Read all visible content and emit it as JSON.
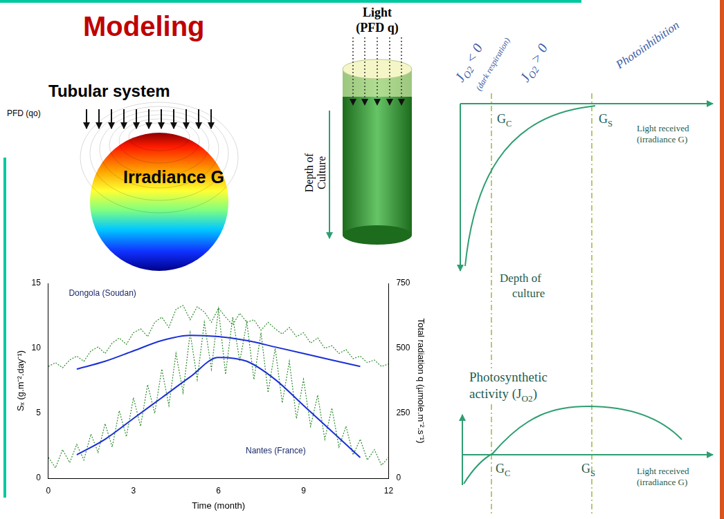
{
  "title": "Modeling",
  "tubular_system": {
    "title": "Tubular system",
    "pfd_label": "PFD (qo)",
    "field_label": "Irradiance G"
  },
  "culture_column": {
    "light_label": "Light",
    "pfd_label": "(PFD q)",
    "depth_label": "Depth of Culture"
  },
  "light_response": {
    "zones": {
      "dark": {
        "label": [
          {
            "t": "J"
          },
          {
            "sub": "O2"
          },
          {
            "t": " < 0"
          }
        ],
        "note": "(dark respiration)"
      },
      "positive": {
        "label": [
          {
            "t": "J"
          },
          {
            "sub": "O2"
          },
          {
            "t": " > 0"
          }
        ]
      },
      "inhibition": {
        "label": "Photoinhibition"
      }
    },
    "thresholds": [
      [
        {
          "t": "G"
        },
        {
          "sub": "C"
        }
      ],
      [
        {
          "t": "G"
        },
        {
          "sub": "S"
        }
      ]
    ],
    "top_panel": {
      "x_label": "Light received (irradiance G)",
      "y_label": "Depth of culture"
    },
    "bottom_panel": {
      "x_label": "Light received (irradiance G)",
      "y_label": [
        {
          "t": "Photosynthetic activity ("
        },
        {
          "t": "J"
        },
        {
          "sub": "O2"
        },
        {
          "t": ")"
        }
      ]
    }
  },
  "chart_data": {
    "type": "line",
    "x_label": "Time (month)",
    "y_label": "Sₓ (g.m⁻².day⁻¹)",
    "y2_label": "Total radiation q (µmole.m⁻².s⁻¹)",
    "xlim": [
      0,
      12
    ],
    "xticks": [
      0,
      3,
      6,
      9,
      12
    ],
    "ylim": [
      0,
      15
    ],
    "yticks": [
      0,
      5,
      10,
      15
    ],
    "y2lim": [
      0,
      750
    ],
    "y2ticks": [
      0,
      250,
      500,
      750
    ],
    "grid": false,
    "series": [
      {
        "name": "Dongola (Soudan)",
        "color": "#1a2fd6",
        "axis": "y",
        "line_style": "solid",
        "x": [
          1,
          2,
          3,
          4,
          5,
          6,
          7,
          8,
          9,
          10,
          11
        ],
        "values": [
          8.4,
          9.0,
          9.8,
          10.6,
          11.0,
          10.9,
          10.6,
          10.1,
          9.6,
          9.1,
          8.6
        ]
      },
      {
        "name": "Nantes (France)",
        "color": "#1a2fd6",
        "axis": "y",
        "line_style": "solid",
        "x": [
          1,
          2,
          3,
          4,
          5,
          6,
          7,
          8,
          9,
          10,
          11
        ],
        "values": [
          1.8,
          3.0,
          4.6,
          6.2,
          7.8,
          9.3,
          9.0,
          7.6,
          5.6,
          3.6,
          1.6
        ]
      },
      {
        "name": "Dongola (Soudan)",
        "color": "#2d8a2d",
        "axis": "y2",
        "line_style": "dotted",
        "x": [
          0,
          0.25,
          0.5,
          0.75,
          1,
          1.25,
          1.5,
          1.75,
          2,
          2.25,
          2.5,
          2.75,
          3,
          3.25,
          3.5,
          3.75,
          4,
          4.25,
          4.5,
          4.75,
          5,
          5.25,
          5.5,
          5.75,
          6,
          6.25,
          6.5,
          6.75,
          7,
          7.25,
          7.5,
          7.75,
          8,
          8.25,
          8.5,
          8.75,
          9,
          9.25,
          9.5,
          9.75,
          10,
          10.25,
          10.5,
          10.75,
          11,
          11.25,
          11.5,
          11.75,
          12
        ],
        "values": [
          430,
          445,
          425,
          455,
          470,
          450,
          490,
          505,
          480,
          520,
          540,
          515,
          560,
          575,
          545,
          600,
          620,
          580,
          650,
          665,
          610,
          660,
          640,
          600,
          655,
          620,
          590,
          635,
          600,
          610,
          570,
          600,
          575,
          555,
          580,
          545,
          560,
          520,
          540,
          500,
          510,
          480,
          495,
          460,
          470,
          445,
          455,
          430,
          440
        ]
      },
      {
        "name": "Nantes (France)",
        "color": "#2d8a2d",
        "axis": "y2",
        "line_style": "dotted",
        "x": [
          0,
          0.25,
          0.5,
          0.75,
          1,
          1.25,
          1.5,
          1.75,
          2,
          2.25,
          2.5,
          2.75,
          3,
          3.25,
          3.5,
          3.75,
          4,
          4.25,
          4.5,
          4.75,
          5,
          5.25,
          5.5,
          5.75,
          6,
          6.25,
          6.5,
          6.75,
          7,
          7.25,
          7.5,
          7.75,
          8,
          8.25,
          8.5,
          8.75,
          9,
          9.25,
          9.5,
          9.75,
          10,
          10.25,
          10.5,
          10.75,
          11,
          11.25,
          11.5,
          11.75,
          12
        ],
        "values": [
          80,
          40,
          110,
          60,
          130,
          70,
          170,
          100,
          210,
          120,
          260,
          160,
          310,
          200,
          360,
          250,
          420,
          280,
          480,
          330,
          560,
          380,
          600,
          420,
          650,
          400,
          620,
          450,
          600,
          380,
          560,
          330,
          500,
          290,
          450,
          230,
          380,
          200,
          320,
          150,
          270,
          120,
          200,
          90,
          150,
          70,
          110,
          50,
          80
        ]
      }
    ]
  }
}
